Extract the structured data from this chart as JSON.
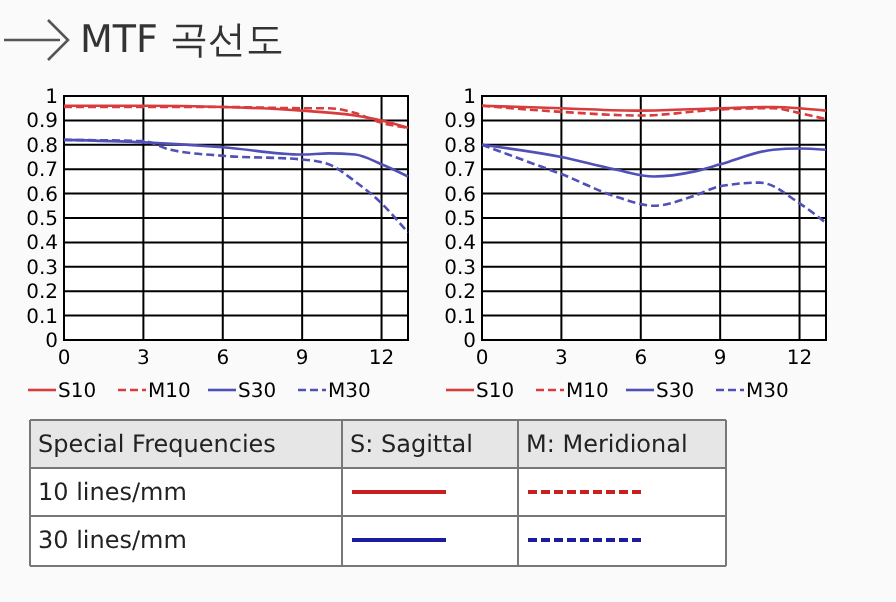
{
  "chart_data": [
    {
      "type": "line",
      "title": "MTF 곡선도",
      "xlim": [
        0,
        13
      ],
      "ylim": [
        0,
        1
      ],
      "xticks": [
        0,
        3,
        6,
        9,
        12
      ],
      "yticks": [
        0,
        0.1,
        0.2,
        0.3,
        0.4,
        0.5,
        0.6,
        0.7,
        0.8,
        0.9,
        1
      ],
      "grid": true,
      "legend": "bottom",
      "series": [
        {
          "name": "S10",
          "color": "#d83c3c",
          "line_style": "solid",
          "x": [
            0,
            3,
            6,
            9,
            11,
            12,
            13
          ],
          "values": [
            0.96,
            0.96,
            0.955,
            0.94,
            0.92,
            0.9,
            0.87
          ]
        },
        {
          "name": "M10",
          "color": "#d83c3c",
          "line_style": "dashed",
          "x": [
            0,
            6,
            9,
            10,
            11,
            12,
            13
          ],
          "values": [
            0.955,
            0.955,
            0.95,
            0.95,
            0.93,
            0.89,
            0.87
          ]
        },
        {
          "name": "S30",
          "color": "#5050b8",
          "line_style": "solid",
          "x": [
            0,
            3,
            6,
            9,
            10,
            11,
            12,
            13
          ],
          "values": [
            0.82,
            0.81,
            0.79,
            0.76,
            0.765,
            0.76,
            0.72,
            0.67
          ]
        },
        {
          "name": "M30",
          "color": "#5050b8",
          "line_style": "dashed",
          "x": [
            0,
            3,
            4,
            6,
            9,
            10,
            11,
            12,
            13
          ],
          "values": [
            0.82,
            0.815,
            0.78,
            0.755,
            0.74,
            0.72,
            0.65,
            0.56,
            0.44
          ]
        }
      ]
    },
    {
      "type": "line",
      "xlim": [
        0,
        13
      ],
      "ylim": [
        0,
        1
      ],
      "xticks": [
        0,
        3,
        6,
        9,
        12
      ],
      "yticks": [
        0,
        0.1,
        0.2,
        0.3,
        0.4,
        0.5,
        0.6,
        0.7,
        0.8,
        0.9,
        1
      ],
      "grid": true,
      "legend": "bottom",
      "series": [
        {
          "name": "S10",
          "color": "#d83c3c",
          "line_style": "solid",
          "x": [
            0,
            3,
            6,
            9,
            11,
            12,
            13
          ],
          "values": [
            0.96,
            0.95,
            0.94,
            0.95,
            0.955,
            0.95,
            0.94
          ]
        },
        {
          "name": "M10",
          "color": "#d83c3c",
          "line_style": "dashed",
          "x": [
            0,
            3,
            6,
            9,
            11,
            12,
            13
          ],
          "values": [
            0.96,
            0.935,
            0.92,
            0.945,
            0.95,
            0.93,
            0.905
          ]
        },
        {
          "name": "S30",
          "color": "#5050b8",
          "line_style": "solid",
          "x": [
            0,
            3,
            5,
            6.5,
            8,
            9,
            11,
            12,
            13
          ],
          "values": [
            0.8,
            0.75,
            0.7,
            0.67,
            0.69,
            0.72,
            0.78,
            0.785,
            0.78
          ]
        },
        {
          "name": "M30",
          "color": "#5050b8",
          "line_style": "dashed",
          "x": [
            0,
            2,
            3,
            5,
            6.5,
            8,
            9,
            10.5,
            12,
            13
          ],
          "values": [
            0.8,
            0.72,
            0.68,
            0.59,
            0.55,
            0.59,
            0.63,
            0.645,
            0.56,
            0.48
          ]
        }
      ]
    },
    {
      "type": "other",
      "annotations": [
        "Special Frequencies",
        "S: Sagittal",
        "M: Meridional",
        "10 lines/mm",
        "30 lines/mm"
      ]
    }
  ]
}
